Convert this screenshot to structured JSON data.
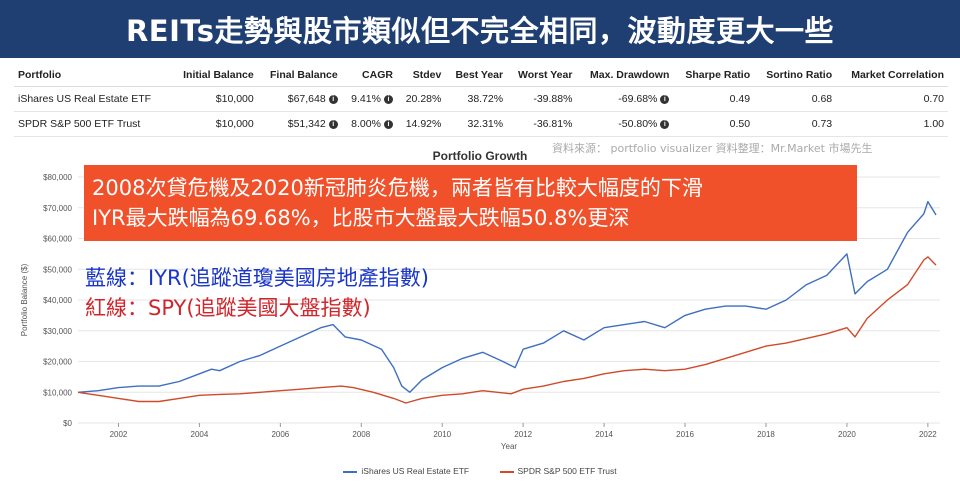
{
  "banner": {
    "title": "REITs走勢與股市類似但不完全相同，波動度更大一些"
  },
  "table": {
    "headers": [
      "Portfolio",
      "Initial Balance",
      "Final Balance",
      "CAGR",
      "Stdev",
      "Best Year",
      "Worst Year",
      "Max. Drawdown",
      "Sharpe Ratio",
      "Sortino Ratio",
      "Market Correlation"
    ],
    "rows": [
      [
        "iShares US Real Estate ETF",
        "$10,000",
        "$67,648",
        "9.41%",
        "20.28%",
        "38.72%",
        "-39.88%",
        "-69.68%",
        "0.49",
        "0.68",
        "0.70"
      ],
      [
        "SPDR S&P 500 ETF Trust",
        "$10,000",
        "$51,342",
        "8.00%",
        "14.92%",
        "32.31%",
        "-36.81%",
        "-50.80%",
        "0.50",
        "0.73",
        "1.00"
      ]
    ]
  },
  "source": "資料來源： portfolio visualizer 資料整理：Mr.Market 市場先生",
  "callout": {
    "line1": "2008次貸危機及2020新冠肺炎危機，兩者皆有比較大幅度的下滑",
    "line2": "IYR最大跌幅為69.68%，比股市大盤最大跌幅50.8%更深"
  },
  "notes": {
    "blue": "藍線：IYR(追蹤道瓊美國房地產指數)",
    "red": "紅線：SPY(追蹤美國大盤指數)"
  },
  "colors": {
    "iyr": "#3f6fbf",
    "spy": "#d04a2a",
    "banner": "#1f3f73",
    "callout": "#f0502a"
  },
  "chart_data": {
    "type": "line",
    "title": "Portfolio Growth",
    "xlabel": "Year",
    "ylabel": "Portfolio Balance ($)",
    "xlim": [
      2001,
      2022.3
    ],
    "ylim": [
      0,
      80000
    ],
    "x_ticks": [
      "2002",
      "2004",
      "2006",
      "2008",
      "2010",
      "2012",
      "2014",
      "2016",
      "2018",
      "2020",
      "2022"
    ],
    "y_ticks": [
      "$0",
      "$10,000",
      "$20,000",
      "$30,000",
      "$40,000",
      "$50,000",
      "$60,000",
      "$70,000",
      "$80,000"
    ],
    "series": [
      {
        "name": "iShares US Real Estate ETF",
        "x": [
          2001,
          2001.5,
          2002,
          2002.5,
          2003,
          2003.5,
          2004,
          2004.3,
          2004.5,
          2005,
          2005.5,
          2006,
          2006.5,
          2007,
          2007.3,
          2007.6,
          2008,
          2008.5,
          2008.8,
          2009.0,
          2009.2,
          2009.5,
          2010,
          2010.5,
          2011,
          2011.5,
          2011.8,
          2012,
          2012.5,
          2013,
          2013.5,
          2014,
          2014.5,
          2015,
          2015.5,
          2016,
          2016.5,
          2017,
          2017.5,
          2018,
          2018.5,
          2019,
          2019.5,
          2020,
          2020.2,
          2020.5,
          2021,
          2021.5,
          2021.9,
          2022.0,
          2022.2
        ],
        "values": [
          10000,
          10500,
          11500,
          12000,
          12000,
          13500,
          16000,
          17500,
          17000,
          20000,
          22000,
          25000,
          28000,
          31000,
          32000,
          28000,
          27000,
          24000,
          18000,
          12000,
          10000,
          14000,
          18000,
          21000,
          23000,
          20000,
          18000,
          24000,
          26000,
          30000,
          27000,
          31000,
          32000,
          33000,
          31000,
          35000,
          37000,
          38000,
          38000,
          37000,
          40000,
          45000,
          48000,
          55000,
          42000,
          46000,
          50000,
          62000,
          68000,
          72000,
          67648
        ]
      },
      {
        "name": "SPDR S&P 500 ETF Trust",
        "x": [
          2001,
          2001.5,
          2002,
          2002.5,
          2003,
          2003.5,
          2004,
          2004.5,
          2005,
          2005.5,
          2006,
          2006.5,
          2007,
          2007.5,
          2007.8,
          2008.3,
          2008.8,
          2009.1,
          2009.5,
          2010,
          2010.5,
          2011,
          2011.7,
          2012,
          2012.5,
          2013,
          2013.5,
          2014,
          2014.5,
          2015,
          2015.5,
          2016,
          2016.5,
          2017,
          2017.5,
          2018,
          2018.5,
          2019,
          2019.5,
          2020,
          2020.2,
          2020.5,
          2021,
          2021.5,
          2021.9,
          2022.0,
          2022.2
        ],
        "values": [
          10000,
          9000,
          8000,
          7000,
          7000,
          8000,
          9000,
          9300,
          9500,
          10000,
          10500,
          11000,
          11500,
          12000,
          11500,
          10000,
          8000,
          6500,
          8000,
          9000,
          9500,
          10500,
          9500,
          11000,
          12000,
          13500,
          14500,
          16000,
          17000,
          17500,
          17000,
          17500,
          19000,
          21000,
          23000,
          25000,
          26000,
          27500,
          29000,
          31000,
          28000,
          34000,
          40000,
          45000,
          53000,
          54000,
          51342
        ]
      }
    ]
  }
}
